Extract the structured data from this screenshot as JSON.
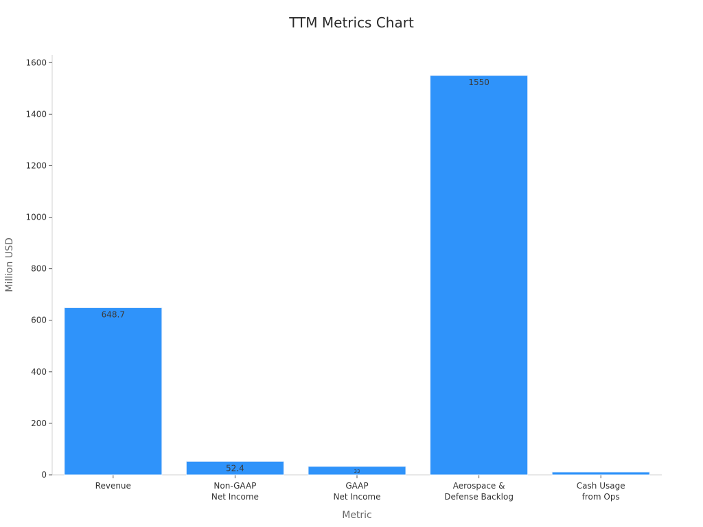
{
  "chart_data": {
    "type": "bar",
    "title": "TTM Metrics Chart",
    "xlabel": "Metric",
    "ylabel": "Million USD",
    "categories": [
      [
        "Revenue"
      ],
      [
        "Non-GAAP",
        "Net Income"
      ],
      [
        "GAAP",
        "Net Income"
      ],
      [
        "Aerospace &",
        "Defense Backlog"
      ],
      [
        "Cash Usage",
        "from Ops"
      ]
    ],
    "values": [
      648.7,
      52.4,
      33,
      1550,
      11
    ],
    "data_labels": [
      "648.7",
      "52.4",
      "33",
      "1550",
      ""
    ],
    "ylim": [
      0,
      1630
    ],
    "yticks": [
      0,
      200,
      400,
      600,
      800,
      1000,
      1200,
      1400,
      1600
    ],
    "grid": false,
    "bar_color": "#2f93fa",
    "bar_edge_color": "#e8f0fb",
    "axis_color": "#d0d0d0"
  }
}
